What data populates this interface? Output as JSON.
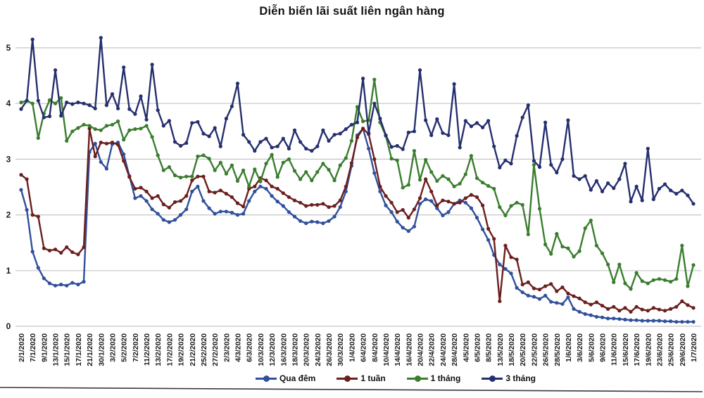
{
  "title": "Diễn biến lãi suất liên ngân hàng",
  "colors": {
    "background": "#ffffff",
    "gridline": "#c5c5c5",
    "axis_text": "#1a1a1a",
    "bottom_rule": "#3a3a3a"
  },
  "chart_data": {
    "type": "line",
    "title": "Diễn biến lãi suất liên ngân hàng",
    "xlabel": "",
    "ylabel": "",
    "ylim": [
      0,
      5.4
    ],
    "y_ticks": [
      0,
      1,
      2,
      3,
      4,
      5
    ],
    "grid": true,
    "legend_position": "bottom",
    "x_label_every_nth_point": 2,
    "x_labels": [
      "2/1/2020",
      "7/1/2020",
      "9/1/2020",
      "13/1/2020",
      "15/1/2020",
      "17/1/2020",
      "21/1/2020",
      "30/1/2020",
      "3/2/2020",
      "5/2/2020",
      "7/2/2020",
      "11/2/2020",
      "13/2/2020",
      "17/2/2020",
      "19/2/2020",
      "21/2/2020",
      "25/2/2020",
      "27/2/2020",
      "2/3/2020",
      "4/3/2020",
      "6/3/2020",
      "10/3/2020",
      "12/3/2020",
      "16/3/2020",
      "18/3/2020",
      "20/3/2020",
      "24/3/2020",
      "26/3/2020",
      "30/3/2020",
      "1/4/2020",
      "6/4/2020",
      "8/4/2020",
      "10/4/2020",
      "14/4/2020",
      "16/4/2020",
      "20/4/2020",
      "22/4/2020",
      "24/4/2020",
      "28/4/2020",
      "4/5/2020",
      "6/5/2020",
      "8/5/2020",
      "13/5/2020",
      "18/5/2020",
      "20/5/2020",
      "22/5/2020",
      "26/5/2020",
      "28/5/2020",
      "1/6/2020",
      "3/6/2020",
      "5/6/2020",
      "9/6/2020",
      "11/6/2020",
      "15/6/2020",
      "17/6/2020",
      "19/6/2020",
      "23/6/2020",
      "25/6/2020",
      "29/6/2020",
      "1/7/2020"
    ],
    "series": [
      {
        "name": "Qua đêm",
        "color": "#30509B",
        "values": [
          2.45,
          2.09,
          1.34,
          1.05,
          0.86,
          0.77,
          0.73,
          0.75,
          0.73,
          0.78,
          0.75,
          0.8,
          3.13,
          3.28,
          2.95,
          2.83,
          3.27,
          3.3,
          3.09,
          2.7,
          2.3,
          2.34,
          2.25,
          2.1,
          2.02,
          1.91,
          1.87,
          1.91,
          2.0,
          2.1,
          2.42,
          2.51,
          2.25,
          2.12,
          2.02,
          2.06,
          2.06,
          2.04,
          2.0,
          2.02,
          2.25,
          2.42,
          2.51,
          2.47,
          2.34,
          2.24,
          2.16,
          2.05,
          1.97,
          1.89,
          1.85,
          1.88,
          1.87,
          1.85,
          1.89,
          1.97,
          2.14,
          2.42,
          2.88,
          3.43,
          3.55,
          3.19,
          2.75,
          2.42,
          2.17,
          2.05,
          1.88,
          1.77,
          1.71,
          1.79,
          2.2,
          2.28,
          2.25,
          2.12,
          1.99,
          2.05,
          2.2,
          2.26,
          2.22,
          2.12,
          1.95,
          1.74,
          1.55,
          1.28,
          1.11,
          1.03,
          0.95,
          0.69,
          0.61,
          0.55,
          0.53,
          0.49,
          0.55,
          0.44,
          0.42,
          0.4,
          0.52,
          0.31,
          0.26,
          0.22,
          0.2,
          0.17,
          0.16,
          0.14,
          0.14,
          0.13,
          0.12,
          0.11,
          0.11,
          0.1,
          0.1,
          0.1,
          0.1,
          0.09,
          0.09,
          0.08,
          0.08,
          0.08,
          0.08
        ]
      },
      {
        "name": "1 tuần",
        "color": "#6B1E1E",
        "values": [
          2.72,
          2.64,
          2.0,
          1.97,
          1.4,
          1.36,
          1.38,
          1.32,
          1.42,
          1.33,
          1.29,
          1.42,
          3.55,
          3.05,
          3.3,
          3.28,
          3.3,
          3.26,
          2.97,
          2.68,
          2.47,
          2.49,
          2.42,
          2.3,
          2.34,
          2.19,
          2.13,
          2.23,
          2.25,
          2.34,
          2.62,
          2.69,
          2.69,
          2.42,
          2.4,
          2.44,
          2.38,
          2.32,
          2.21,
          2.15,
          2.47,
          2.51,
          2.66,
          2.62,
          2.51,
          2.47,
          2.39,
          2.32,
          2.26,
          2.22,
          2.16,
          2.18,
          2.18,
          2.2,
          2.14,
          2.16,
          2.26,
          2.51,
          2.93,
          3.39,
          3.55,
          3.45,
          3.0,
          2.51,
          2.34,
          2.22,
          2.05,
          2.09,
          1.95,
          2.1,
          2.3,
          2.64,
          2.42,
          2.17,
          2.26,
          2.24,
          2.2,
          2.22,
          2.3,
          2.36,
          2.32,
          2.17,
          1.75,
          1.57,
          0.45,
          1.45,
          1.24,
          1.2,
          0.75,
          0.79,
          0.68,
          0.66,
          0.72,
          0.76,
          0.63,
          0.7,
          0.59,
          0.54,
          0.5,
          0.43,
          0.39,
          0.43,
          0.37,
          0.31,
          0.35,
          0.28,
          0.33,
          0.26,
          0.35,
          0.3,
          0.28,
          0.33,
          0.3,
          0.28,
          0.31,
          0.35,
          0.45,
          0.38,
          0.33
        ]
      },
      {
        "name": "1 tháng",
        "color": "#3A7D2E",
        "values": [
          4.02,
          4.05,
          4.0,
          3.38,
          3.82,
          4.06,
          4.0,
          4.1,
          3.33,
          3.5,
          3.56,
          3.62,
          3.6,
          3.54,
          3.52,
          3.6,
          3.62,
          3.68,
          3.35,
          3.52,
          3.54,
          3.55,
          3.6,
          3.4,
          3.07,
          2.8,
          2.86,
          2.71,
          2.67,
          2.69,
          2.69,
          3.05,
          3.07,
          3.01,
          2.8,
          2.94,
          2.74,
          2.89,
          2.61,
          2.8,
          2.51,
          2.82,
          2.6,
          2.92,
          3.08,
          2.68,
          2.94,
          3.0,
          2.79,
          2.64,
          2.77,
          2.62,
          2.77,
          2.92,
          2.81,
          2.62,
          2.89,
          3.02,
          3.33,
          3.94,
          3.68,
          3.7,
          4.43,
          3.66,
          3.42,
          3.01,
          2.98,
          2.49,
          2.54,
          3.15,
          2.63,
          2.99,
          2.77,
          2.61,
          2.7,
          2.64,
          2.51,
          2.56,
          2.73,
          3.06,
          2.66,
          2.58,
          2.52,
          2.47,
          2.14,
          1.99,
          2.16,
          2.22,
          2.18,
          1.65,
          2.9,
          2.11,
          1.47,
          1.3,
          1.66,
          1.43,
          1.4,
          1.25,
          1.35,
          1.76,
          1.9,
          1.45,
          1.31,
          1.11,
          0.79,
          1.11,
          0.77,
          0.67,
          0.96,
          0.81,
          0.77,
          0.83,
          0.85,
          0.83,
          0.8,
          0.85,
          1.45,
          0.72,
          1.1
        ]
      },
      {
        "name": "3 tháng",
        "color": "#252F6E",
        "values": [
          3.9,
          4.05,
          5.15,
          4.05,
          3.75,
          3.77,
          4.6,
          3.78,
          4.02,
          3.99,
          4.02,
          4.0,
          3.97,
          3.91,
          5.18,
          3.97,
          4.17,
          3.91,
          4.65,
          3.9,
          3.81,
          4.13,
          3.71,
          4.7,
          3.88,
          3.6,
          3.69,
          3.31,
          3.24,
          3.29,
          3.65,
          3.67,
          3.46,
          3.41,
          3.56,
          3.23,
          3.73,
          3.95,
          4.36,
          3.44,
          3.31,
          3.15,
          3.31,
          3.37,
          3.21,
          3.23,
          3.37,
          3.19,
          3.52,
          3.31,
          3.19,
          3.15,
          3.23,
          3.52,
          3.33,
          3.44,
          3.46,
          3.54,
          3.62,
          3.66,
          4.45,
          3.47,
          4.0,
          3.73,
          3.43,
          3.22,
          3.24,
          3.18,
          3.48,
          3.5,
          4.6,
          3.7,
          3.43,
          3.72,
          3.47,
          3.43,
          4.35,
          3.21,
          3.69,
          3.59,
          3.65,
          3.57,
          3.69,
          3.23,
          2.85,
          2.98,
          2.92,
          3.42,
          3.75,
          3.97,
          2.97,
          2.86,
          3.66,
          2.9,
          2.76,
          3.0,
          3.7,
          2.7,
          2.64,
          2.7,
          2.45,
          2.61,
          2.42,
          2.57,
          2.48,
          2.64,
          2.92,
          2.24,
          2.51,
          2.26,
          3.19,
          2.28,
          2.47,
          2.55,
          2.44,
          2.38,
          2.44,
          2.35,
          2.2
        ]
      }
    ]
  }
}
